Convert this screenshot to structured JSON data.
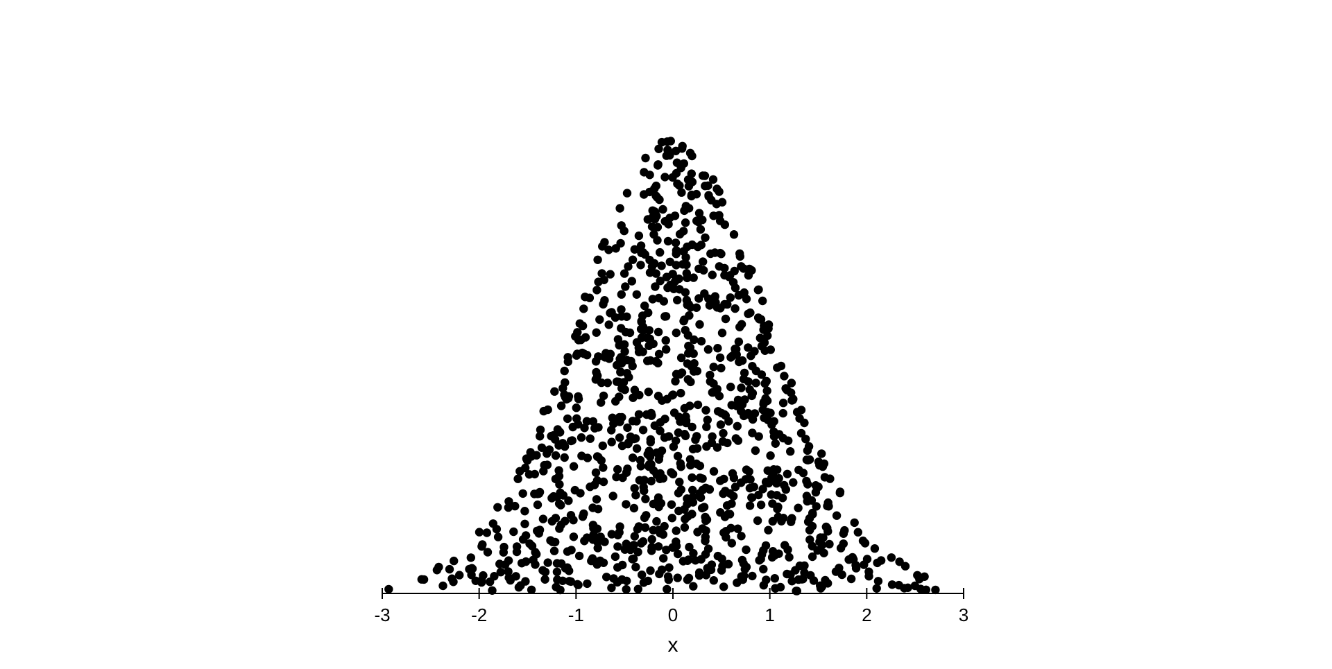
{
  "chart_data": {
    "type": "scatter",
    "title": "",
    "xlabel": "x",
    "ylabel": "",
    "xlim": [
      -3,
      3
    ],
    "ylim": [
      0,
      1
    ],
    "x_ticks": [
      "-3",
      "-2",
      "-1",
      "0",
      "1",
      "2",
      "3"
    ],
    "grid": false,
    "legend": "none",
    "y_axis_visible": false,
    "marker_color": "#000000",
    "n_points": 1100,
    "distribution_note": "Points fill the area under a bell curve centered near x = 0 (standard normal shape), scattered uniformly up to the curve height"
  }
}
